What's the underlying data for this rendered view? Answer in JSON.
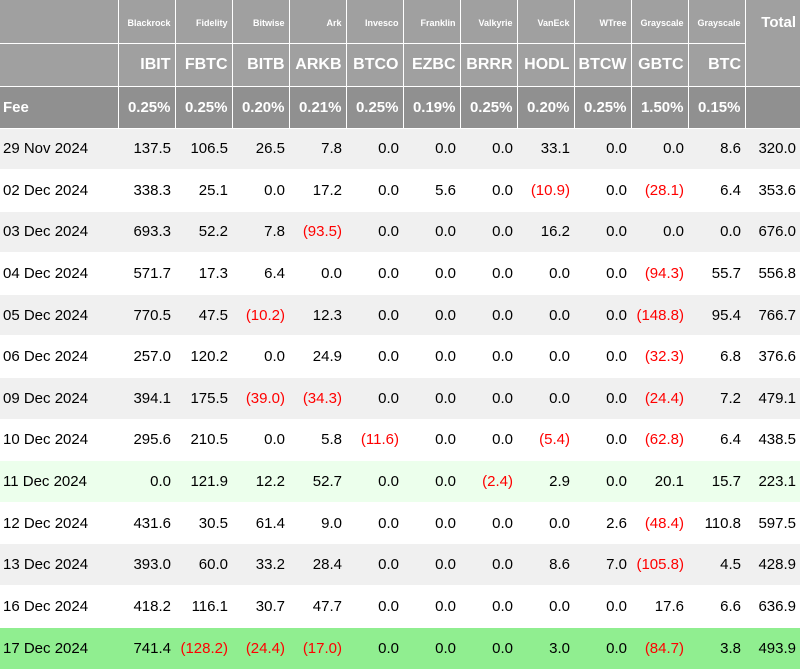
{
  "colors": {
    "header_bg": "#a0a0a0",
    "fee_bg": "#909090",
    "negative": "#ff0000",
    "row_highlight": "#ecffec",
    "row_latest": "#90ee90"
  },
  "header": {
    "total_label": "Total",
    "fee_label": "Fee",
    "issuers": [
      "Blackrock",
      "Fidelity",
      "Bitwise",
      "Ark",
      "Invesco",
      "Franklin",
      "Valkyrie",
      "VanEck",
      "WTree",
      "Grayscale",
      "Grayscale"
    ],
    "tickers": [
      "IBIT",
      "FBTC",
      "BITB",
      "ARKB",
      "BTCO",
      "EZBC",
      "BRRR",
      "HODL",
      "BTCW",
      "GBTC",
      "BTC"
    ],
    "fees": [
      "0.25%",
      "0.25%",
      "0.20%",
      "0.21%",
      "0.25%",
      "0.19%",
      "0.25%",
      "0.20%",
      "0.25%",
      "1.50%",
      "0.15%"
    ]
  },
  "rows": [
    {
      "date": "29 Nov 2024",
      "style": "odd",
      "values": [
        "137.5",
        "106.5",
        "26.5",
        "7.8",
        "0.0",
        "0.0",
        "0.0",
        "33.1",
        "0.0",
        "0.0",
        "8.6"
      ],
      "total": "320.0"
    },
    {
      "date": "02 Dec 2024",
      "style": "even",
      "values": [
        "338.3",
        "25.1",
        "0.0",
        "17.2",
        "0.0",
        "5.6",
        "0.0",
        "(10.9)",
        "0.0",
        "(28.1)",
        "6.4"
      ],
      "total": "353.6"
    },
    {
      "date": "03 Dec 2024",
      "style": "odd",
      "values": [
        "693.3",
        "52.2",
        "7.8",
        "(93.5)",
        "0.0",
        "0.0",
        "0.0",
        "16.2",
        "0.0",
        "0.0",
        "0.0"
      ],
      "total": "676.0"
    },
    {
      "date": "04 Dec 2024",
      "style": "even",
      "values": [
        "571.7",
        "17.3",
        "6.4",
        "0.0",
        "0.0",
        "0.0",
        "0.0",
        "0.0",
        "0.0",
        "(94.3)",
        "55.7"
      ],
      "total": "556.8"
    },
    {
      "date": "05 Dec 2024",
      "style": "odd",
      "values": [
        "770.5",
        "47.5",
        "(10.2)",
        "12.3",
        "0.0",
        "0.0",
        "0.0",
        "0.0",
        "0.0",
        "(148.8)",
        "95.4"
      ],
      "total": "766.7"
    },
    {
      "date": "06 Dec 2024",
      "style": "even",
      "values": [
        "257.0",
        "120.2",
        "0.0",
        "24.9",
        "0.0",
        "0.0",
        "0.0",
        "0.0",
        "0.0",
        "(32.3)",
        "6.8"
      ],
      "total": "376.6"
    },
    {
      "date": "09 Dec 2024",
      "style": "odd",
      "values": [
        "394.1",
        "175.5",
        "(39.0)",
        "(34.3)",
        "0.0",
        "0.0",
        "0.0",
        "0.0",
        "0.0",
        "(24.4)",
        "7.2"
      ],
      "total": "479.1"
    },
    {
      "date": "10 Dec 2024",
      "style": "even",
      "values": [
        "295.6",
        "210.5",
        "0.0",
        "5.8",
        "(11.6)",
        "0.0",
        "0.0",
        "(5.4)",
        "0.0",
        "(62.8)",
        "6.4"
      ],
      "total": "438.5"
    },
    {
      "date": "11 Dec 2024",
      "style": "light-green",
      "values": [
        "0.0",
        "121.9",
        "12.2",
        "52.7",
        "0.0",
        "0.0",
        "(2.4)",
        "2.9",
        "0.0",
        "20.1",
        "15.7"
      ],
      "total": "223.1"
    },
    {
      "date": "12 Dec 2024",
      "style": "even",
      "values": [
        "431.6",
        "30.5",
        "61.4",
        "9.0",
        "0.0",
        "0.0",
        "0.0",
        "0.0",
        "2.6",
        "(48.4)",
        "110.8"
      ],
      "total": "597.5"
    },
    {
      "date": "13 Dec 2024",
      "style": "odd",
      "values": [
        "393.0",
        "60.0",
        "33.2",
        "28.4",
        "0.0",
        "0.0",
        "0.0",
        "8.6",
        "7.0",
        "(105.8)",
        "4.5"
      ],
      "total": "428.9"
    },
    {
      "date": "16 Dec 2024",
      "style": "even",
      "values": [
        "418.2",
        "116.1",
        "30.7",
        "47.7",
        "0.0",
        "0.0",
        "0.0",
        "0.0",
        "0.0",
        "17.6",
        "6.6"
      ],
      "total": "636.9"
    },
    {
      "date": "17 Dec 2024",
      "style": "bright-green",
      "values": [
        "741.4",
        "(128.2)",
        "(24.4)",
        "(17.0)",
        "0.0",
        "0.0",
        "0.0",
        "3.0",
        "0.0",
        "(84.7)",
        "3.8"
      ],
      "total": "493.9"
    }
  ]
}
